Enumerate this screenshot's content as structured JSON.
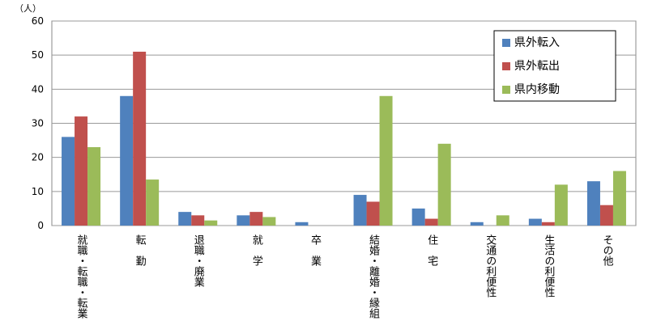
{
  "chart_data": {
    "type": "bar",
    "y_unit": "（人）",
    "categories": [
      "就職・転職・転業",
      "転　勤",
      "退職・廃業",
      "就　学",
      "卒　業",
      "結婚・離婚・縁組",
      "住　宅",
      "交通の利便性",
      "生活の利便性",
      "その他"
    ],
    "series": [
      {
        "name": "県外転入",
        "color": "#4f81bd",
        "values": [
          26,
          38,
          4,
          3,
          1,
          9,
          5,
          1,
          2,
          13
        ]
      },
      {
        "name": "県外転出",
        "color": "#c0504d",
        "values": [
          32,
          51,
          3,
          4,
          0,
          7,
          2,
          0,
          1,
          6
        ]
      },
      {
        "name": "県内移動",
        "color": "#9bbb59",
        "values": [
          23,
          13.5,
          1.5,
          2.5,
          0,
          38,
          24,
          3,
          12,
          16
        ]
      }
    ],
    "ylim": [
      0,
      60
    ],
    "yticks": [
      0,
      10,
      20,
      30,
      40,
      50,
      60
    ],
    "grid": true,
    "legend": "upper right"
  }
}
